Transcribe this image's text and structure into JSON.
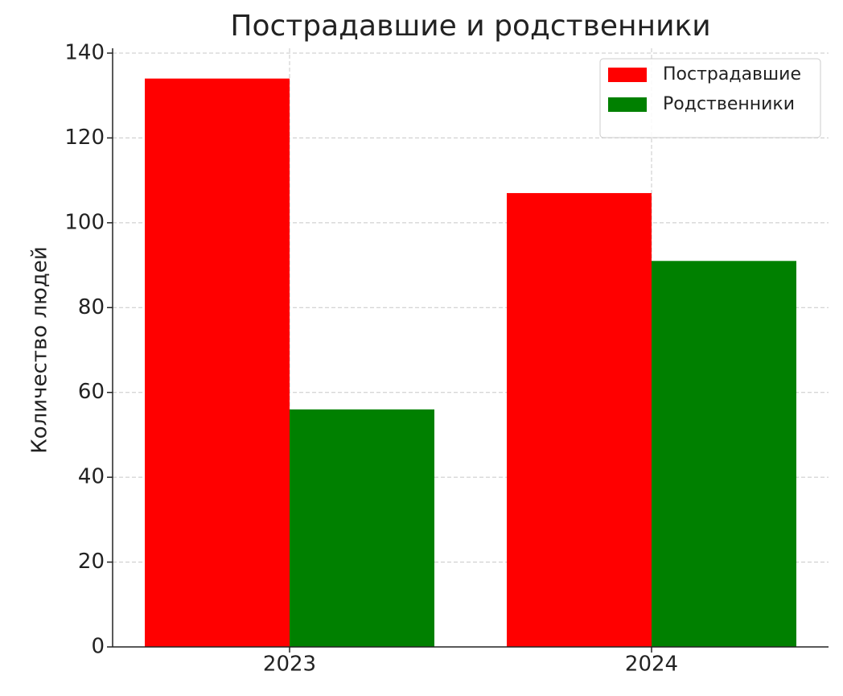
{
  "chart_data": {
    "type": "bar",
    "title": "Пострадавшие и родственники",
    "y_label": "Количество людей",
    "categories": [
      "2023",
      "2024"
    ],
    "series": [
      {
        "name": "Пострадавшие",
        "color": "#ff0000",
        "values": [
          134,
          107
        ]
      },
      {
        "name": "Родственники",
        "color": "#008000",
        "values": [
          56,
          91
        ]
      }
    ],
    "ylim": [
      0,
      140
    ],
    "yticks": [
      0,
      20,
      40,
      60,
      80,
      100,
      120,
      140
    ],
    "grid": true,
    "legend": "upper right"
  }
}
